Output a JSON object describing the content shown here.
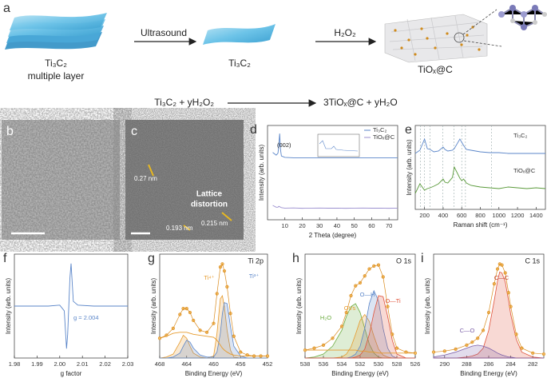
{
  "scheme": {
    "panel": "a",
    "stage1": "Ti₃C₂",
    "stage1_note": "multiple layer",
    "arrow1": "Ultrasound",
    "stage2": "Ti₃C₂",
    "arrow2": "H₂O₂",
    "stage3": "TiOₓ@C",
    "equation_left": "Ti₃C₂ + yH₂O₂",
    "equation_right": "3TiOₓ@C + yH₂O"
  },
  "images": [
    {
      "panel": "b"
    },
    {
      "panel": "c",
      "annotations": [
        "0.27 nm",
        "Lattice",
        "distortion",
        "0.193 nm",
        "0.215 nm"
      ]
    }
  ],
  "chart_data": [
    {
      "type": "line",
      "panel": "d",
      "xlabel": "2 Theta (degree)",
      "ylabel": "Intensity (arb. units)",
      "x": [
        3,
        5,
        6,
        6.5,
        7,
        7.5,
        8,
        10,
        15,
        20,
        25,
        30,
        35,
        40,
        45,
        50,
        55,
        60,
        65,
        70,
        75
      ],
      "series": [
        {
          "name": "Ti₃C₂",
          "color": "#5b86c9",
          "style": "line",
          "values": [
            7.5,
            7.2,
            7.4,
            8.2,
            9.6,
            7.8,
            7.1,
            6.95,
            6.9,
            6.9,
            6.9,
            6.9,
            6.9,
            6.9,
            6.9,
            6.9,
            6.9,
            6.9,
            6.9,
            6.9,
            6.9
          ]
        },
        {
          "name": "TiOₓ@C",
          "color": "#9b8fcf",
          "style": "line",
          "values": [
            1.6,
            1.4,
            1.4,
            1.5,
            1.45,
            1.4,
            1.35,
            1.3,
            1.32,
            1.28,
            1.3,
            1.31,
            1.29,
            1.3,
            1.28,
            1.3,
            1.31,
            1.29,
            1.3,
            1.28,
            1.3
          ]
        }
      ],
      "xlim": [
        0,
        75
      ],
      "ylim": [
        0,
        10.5
      ],
      "xticks": [
        10,
        20,
        30,
        40,
        50,
        60,
        70
      ],
      "legend": "upper right",
      "annotations": [
        {
          "text": "(002)",
          "color": "#222"
        }
      ]
    },
    {
      "type": "line",
      "panel": "e",
      "xlabel": "Raman shift (cm⁻¹)",
      "ylabel": "Intensity (arb. units)",
      "x": [
        100,
        150,
        200,
        230,
        260,
        300,
        350,
        400,
        420,
        450,
        500,
        520,
        580,
        600,
        620,
        650,
        700,
        750,
        800,
        900,
        1000,
        1100,
        1200,
        1300,
        1400,
        1500
      ],
      "series": [
        {
          "name": "Ti₃C₂",
          "color": "#5b86c9",
          "style": "line",
          "values": [
            7.0,
            7.4,
            8.8,
            7.6,
            7.5,
            7.2,
            7.3,
            7.8,
            7.5,
            7.3,
            7.4,
            7.6,
            8.8,
            8.4,
            8.0,
            7.5,
            7.4,
            7.3,
            7.2,
            7.1,
            7.1,
            7.0,
            7.0,
            7.0,
            7.0,
            7.0
          ]
        },
        {
          "name": "TiOₓ@C",
          "color": "#5a9a3a",
          "style": "line",
          "values": [
            2.0,
            3.2,
            2.4,
            2.6,
            2.7,
            2.9,
            3.2,
            3.8,
            3.4,
            3.3,
            4.0,
            5.3,
            3.9,
            3.6,
            3.8,
            3.3,
            3.0,
            2.9,
            2.8,
            2.7,
            2.6,
            2.8,
            2.7,
            2.6,
            2.7,
            2.6
          ]
        }
      ],
      "xlim": [
        100,
        1500
      ],
      "ylim": [
        0,
        10.5
      ],
      "xticks": [
        200,
        400,
        600,
        800,
        1000,
        1200,
        1400
      ],
      "vlines": [
        155,
        200,
        260,
        395,
        515,
        600,
        640,
        920
      ]
    },
    {
      "type": "line",
      "panel": "f",
      "xlabel": "g factor",
      "ylabel": "Intensity (arb. units)",
      "x": [
        1.98,
        1.995,
        2.0,
        2.002,
        2.003,
        2.0035,
        2.004,
        2.0045,
        2.005,
        2.006,
        2.008,
        2.015,
        2.03
      ],
      "series": [
        {
          "color": "#5b86c9",
          "style": "line",
          "values": [
            0,
            0,
            0.02,
            -0.1,
            -0.9,
            -0.6,
            0,
            0.6,
            0.9,
            0.1,
            0.02,
            0,
            0
          ]
        }
      ],
      "xlim": [
        1.98,
        2.03
      ],
      "ylim": [
        -1.1,
        1.1
      ],
      "xticks": [
        1.98,
        1.99,
        {
          "value": 2,
          "label": "2.00"
        },
        2.01,
        2.02,
        2.03
      ],
      "annotations": [
        {
          "text": "g = 2.004",
          "color": "#5b86c9"
        }
      ]
    },
    {
      "type": "line",
      "panel": "g",
      "title": "Ti 2p",
      "xlabel": "Binding Energy (eV)",
      "ylabel": "Intensity (arb. units)",
      "x": [
        468,
        467,
        466,
        465,
        464.5,
        464,
        463.5,
        463,
        462,
        461,
        460,
        459.5,
        459,
        458.7,
        458.4,
        458,
        457.5,
        457,
        456,
        455,
        454,
        453,
        452
      ],
      "series": [
        {
          "color": "#e69b2e",
          "style": "area",
          "values": [
            0,
            0.1,
            0.4,
            1.6,
            2.3,
            2.0,
            1.2,
            0.5,
            0.1,
            0,
            0.2,
            2.5,
            6.0,
            6.3,
            5.2,
            2.8,
            0.8,
            0.1,
            0,
            0,
            0,
            0,
            0
          ]
        },
        {
          "color": "#5b86c9",
          "style": "area",
          "values": [
            0,
            0,
            0.1,
            0.5,
            1.2,
            1.8,
            1.6,
            1.0,
            0.3,
            0.1,
            0.1,
            0.6,
            2.5,
            4.5,
            5.6,
            5.5,
            3.2,
            1.2,
            0.2,
            0,
            0,
            0,
            0
          ]
        },
        {
          "color": "#e69b2e",
          "style": "line",
          "values": [
            2.0,
            2.2,
            2.5,
            2.6,
            2.6,
            2.6,
            2.5,
            2.4,
            2.3,
            2.2,
            2.1,
            1.8,
            1.3,
            1.0,
            0.8,
            0.6,
            0.4,
            0.3,
            0.2,
            0.2,
            0.2,
            0.2,
            0.2
          ]
        },
        {
          "color": "#d98a1c",
          "style": "markers",
          "values": [
            2.0,
            2.3,
            3.0,
            4.4,
            5.0,
            5.0,
            4.6,
            3.8,
            2.8,
            2.6,
            3.5,
            6.5,
            9.2,
            9.5,
            8.8,
            7.2,
            4.5,
            2.2,
            0.6,
            0.3,
            0.2,
            0.2,
            0.2
          ]
        }
      ],
      "xlim": [
        468,
        452
      ],
      "ylim": [
        0,
        10.5
      ],
      "xticks": [
        468,
        464,
        460,
        456,
        452
      ],
      "annotations": [
        {
          "text": "Ti⁴⁺",
          "color": "#e69b2e"
        },
        {
          "text": "Ti³⁺",
          "color": "#5b86c9"
        }
      ]
    },
    {
      "type": "line",
      "panel": "h",
      "title": "O 1s",
      "xlabel": "Binding Energy (eV)",
      "ylabel": "Intensity (arb. units)",
      "x": [
        538,
        537,
        536,
        535,
        534,
        533.5,
        533,
        532.5,
        532,
        531.5,
        531,
        530.5,
        530,
        529.5,
        529,
        528.5,
        528,
        527,
        526
      ],
      "series": [
        {
          "color": "#6aab3e",
          "style": "area",
          "values": [
            0,
            0.1,
            0.4,
            1.2,
            2.8,
            4.2,
            5.2,
            5.5,
            4.6,
            3.0,
            1.4,
            0.5,
            0.1,
            0,
            0,
            0,
            0,
            0,
            0
          ]
        },
        {
          "color": "#e69b2e",
          "style": "area",
          "values": [
            0,
            0,
            0,
            0,
            0.1,
            0.4,
            1.1,
            2.4,
            3.8,
            4.4,
            3.7,
            2.2,
            0.9,
            0.3,
            0.1,
            0,
            0,
            0,
            0
          ]
        },
        {
          "color": "#5b86c9",
          "style": "area",
          "values": [
            0,
            0,
            0,
            0,
            0,
            0,
            0.1,
            0.4,
            1.2,
            3.0,
            5.5,
            6.8,
            5.8,
            3.0,
            1.0,
            0.2,
            0,
            0,
            0
          ]
        },
        {
          "color": "#e0533a",
          "style": "area",
          "values": [
            0,
            0,
            0,
            0,
            0,
            0,
            0,
            0.1,
            0.3,
            0.9,
            2.4,
            4.6,
            6.3,
            6.2,
            4.2,
            1.8,
            0.4,
            0,
            0
          ]
        },
        {
          "color": "#e69b2e",
          "style": "line",
          "values": [
            0.8,
            0.8,
            0.8,
            0.8,
            0.8,
            0.8,
            0.8,
            0.8,
            0.7,
            0.7,
            0.6,
            0.6,
            0.5,
            0.5,
            0.5,
            0.5,
            0.5,
            0.5,
            0.5
          ]
        },
        {
          "color": "#d98a1c",
          "style": "markers",
          "values": [
            0.8,
            1.0,
            1.3,
            2.0,
            3.2,
            4.6,
            6.3,
            7.3,
            7.6,
            8.3,
            9.0,
            9.3,
            9.4,
            8.2,
            5.2,
            2.4,
            1.0,
            0.6,
            0.5
          ]
        }
      ],
      "xlim": [
        538,
        526
      ],
      "ylim": [
        0,
        10.5
      ],
      "xticks": [
        538,
        536,
        534,
        532,
        530,
        528,
        526
      ],
      "annotations": [
        {
          "text": "H₂O",
          "color": "#6aab3e"
        },
        {
          "text": "OVs",
          "color": "#e69b2e"
        },
        {
          "text": "O—H",
          "color": "#5b86c9"
        },
        {
          "text": "O—Ti",
          "color": "#e0533a"
        }
      ]
    },
    {
      "type": "line",
      "panel": "i",
      "title": "C 1s",
      "xlabel": "Binding Energy (eV)",
      "ylabel": "Intensity (arb. units)",
      "x": [
        291,
        290,
        289,
        288,
        287.5,
        287,
        286.5,
        286,
        285.5,
        285.2,
        285,
        284.8,
        284.5,
        284.2,
        284,
        283.5,
        283,
        282,
        281
      ],
      "series": [
        {
          "color": "#e0533a",
          "style": "area",
          "values": [
            0,
            0,
            0,
            0.1,
            0.2,
            0.4,
            1.0,
            2.8,
            5.8,
            7.8,
            8.7,
            8.6,
            7.7,
            5.8,
            4.4,
            1.9,
            0.6,
            0.1,
            0
          ]
        },
        {
          "color": "#7b5ea7",
          "style": "area",
          "values": [
            0.1,
            0.3,
            0.6,
            1.0,
            1.2,
            1.3,
            1.2,
            1.0,
            0.7,
            0.5,
            0.4,
            0.3,
            0.2,
            0.1,
            0.1,
            0,
            0,
            0,
            0
          ]
        },
        {
          "color": "#d98a1c",
          "style": "markers",
          "values": [
            0.6,
            0.7,
            0.9,
            1.3,
            1.6,
            2.0,
            2.8,
            4.6,
            7.5,
            9.0,
            9.5,
            9.4,
            8.6,
            6.6,
            5.2,
            2.4,
            1.0,
            0.5,
            0.4
          ]
        }
      ],
      "xlim": [
        291,
        281
      ],
      "ylim": [
        0,
        10.5
      ],
      "xticks": [
        290,
        288,
        286,
        284,
        282
      ],
      "annotations": [
        {
          "text": "C—C",
          "color": "#c0392b"
        },
        {
          "text": "C—O",
          "color": "#7b5ea7"
        }
      ]
    }
  ]
}
